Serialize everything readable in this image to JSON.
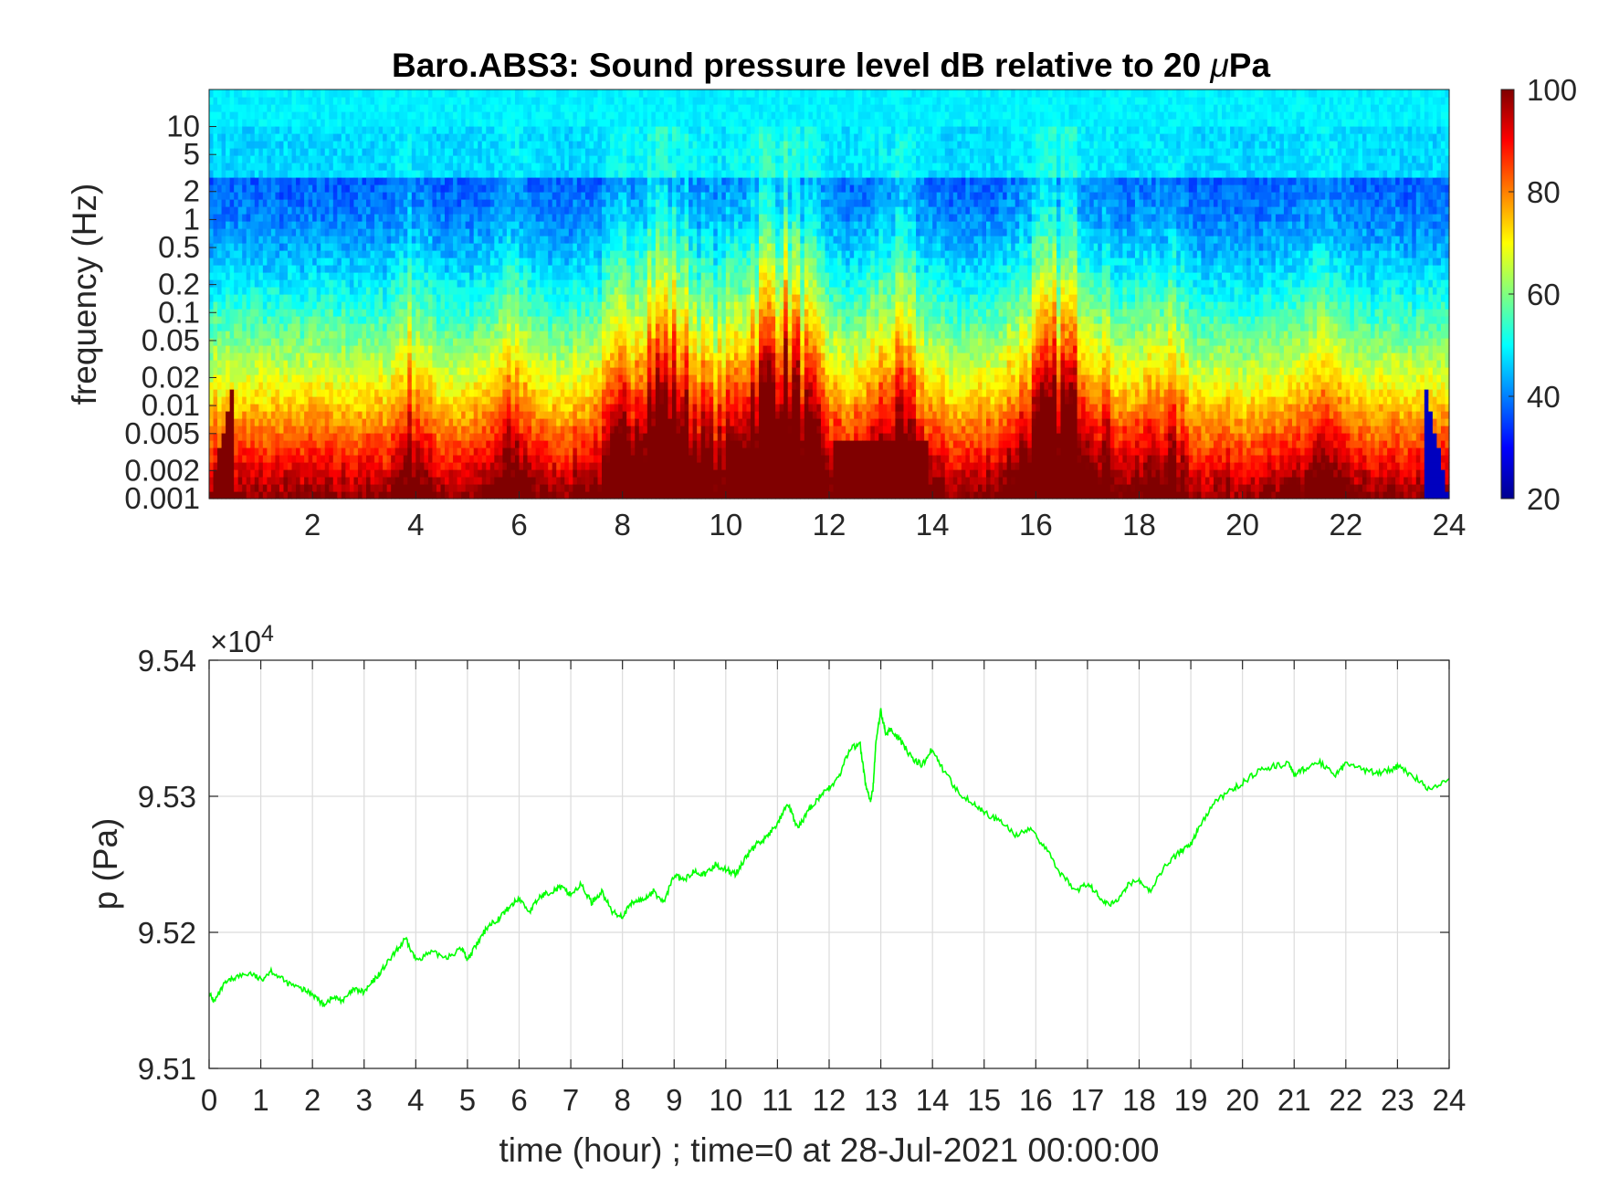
{
  "colors": {
    "line": "#00ff00",
    "axis": "#262626",
    "grid": "#dcdcdc",
    "colormap": "jet"
  },
  "chart_data": [
    {
      "type": "heatmap",
      "title": "Baro.ABS3: Sound pressure level dB relative to 20 μPa",
      "title_main": "Baro.ABS3: Sound pressure level dB relative to 20 ",
      "title_mu": "μ",
      "title_end": "Pa",
      "xlabel": "",
      "ylabel": "frequency (Hz)",
      "xlim": [
        0,
        24
      ],
      "y_scale": "log",
      "ylim": [
        0.001,
        25
      ],
      "x_ticks": [
        "2",
        "4",
        "6",
        "8",
        "10",
        "12",
        "14",
        "16",
        "18",
        "20",
        "22",
        "24"
      ],
      "y_ticks": [
        "0.001",
        "0.002",
        "0.005",
        "0.01",
        "0.02",
        "0.05",
        "0.1",
        "0.2",
        "0.5",
        "1",
        "2",
        "5",
        "10"
      ],
      "colorbar": {
        "label": "",
        "range": [
          20,
          100
        ],
        "ticks": [
          "20",
          "40",
          "60",
          "80",
          "100"
        ]
      },
      "high_energy_periods_hour": [
        [
          7.5,
          9.7
        ],
        [
          10.2,
          12.0
        ],
        [
          15.7,
          17.8
        ]
      ],
      "max_level_region": {
        "hours": [
          12.0,
          14.0
        ],
        "freq_hz": [
          0.001,
          0.004
        ]
      }
    },
    {
      "type": "line",
      "title": "",
      "xlabel": "time (hour) ; time=0 at 28-Jul-2021 00:00:00",
      "ylabel": "p (Pa)",
      "y_multiplier": "×10",
      "y_multiplier_exp": "4",
      "xlim": [
        0,
        24
      ],
      "ylim": [
        9.51,
        9.54
      ],
      "grid": true,
      "x_ticks": [
        "0",
        "1",
        "2",
        "3",
        "4",
        "5",
        "6",
        "7",
        "8",
        "9",
        "10",
        "11",
        "12",
        "13",
        "14",
        "15",
        "16",
        "17",
        "18",
        "19",
        "20",
        "21",
        "22",
        "23",
        "24"
      ],
      "y_ticks": [
        "9.51",
        "9.52",
        "9.53",
        "9.54"
      ],
      "series": [
        {
          "x": [
            0,
            0.1,
            0.3,
            0.5,
            0.8,
            1.0,
            1.2,
            1.5,
            1.8,
            2.0,
            2.2,
            2.4,
            2.6,
            2.8,
            3.0,
            3.2,
            3.4,
            3.6,
            3.8,
            4.0,
            4.3,
            4.6,
            4.9,
            5.0,
            5.2,
            5.4,
            5.6,
            5.8,
            6.0,
            6.2,
            6.4,
            6.6,
            6.8,
            7.0,
            7.2,
            7.4,
            7.6,
            7.8,
            8.0,
            8.2,
            8.4,
            8.6,
            8.8,
            9.0,
            9.2,
            9.4,
            9.6,
            9.8,
            10.0,
            10.2,
            10.4,
            10.6,
            10.8,
            11.0,
            11.2,
            11.4,
            11.6,
            11.8,
            12.0,
            12.2,
            12.4,
            12.6,
            12.7,
            12.8,
            12.85,
            12.9,
            13.0,
            13.1,
            13.2,
            13.4,
            13.6,
            13.8,
            14.0,
            14.2,
            14.5,
            14.8,
            15.0,
            15.3,
            15.6,
            15.9,
            16.2,
            16.5,
            16.8,
            17.0,
            17.2,
            17.4,
            17.6,
            17.8,
            18.0,
            18.2,
            18.5,
            18.8,
            19.0,
            19.2,
            19.5,
            19.8,
            20.0,
            20.3,
            20.6,
            20.9,
            21.0,
            21.2,
            21.5,
            21.8,
            22.0,
            22.3,
            22.6,
            22.9,
            23.0,
            23.3,
            23.6,
            24.0
          ],
          "y": [
            9.5155,
            9.5149,
            9.5162,
            9.5167,
            9.517,
            9.5165,
            9.5172,
            9.5163,
            9.5158,
            9.5155,
            9.5147,
            9.5152,
            9.515,
            9.5158,
            9.5156,
            9.5165,
            9.5175,
            9.5185,
            9.5195,
            9.518,
            9.5185,
            9.5182,
            9.5188,
            9.518,
            9.5192,
            9.5205,
            9.521,
            9.5218,
            9.5225,
            9.5215,
            9.5226,
            9.523,
            9.5233,
            9.5228,
            9.5235,
            9.5222,
            9.523,
            9.5215,
            9.5212,
            9.5222,
            9.5224,
            9.523,
            9.5222,
            9.5242,
            9.5238,
            9.5246,
            9.5242,
            9.525,
            9.5246,
            9.5243,
            9.5256,
            9.5265,
            9.527,
            9.528,
            9.5294,
            9.5276,
            9.529,
            9.5299,
            9.5306,
            9.5315,
            9.5335,
            9.5338,
            9.531,
            9.5296,
            9.5305,
            9.5338,
            9.5363,
            9.5345,
            9.535,
            9.534,
            9.5328,
            9.5323,
            9.5335,
            9.532,
            9.5303,
            9.5295,
            9.5288,
            9.5282,
            9.5272,
            9.5275,
            9.5262,
            9.5242,
            9.523,
            9.5236,
            9.5228,
            9.522,
            9.5225,
            9.5236,
            9.5238,
            9.523,
            9.5248,
            9.526,
            9.5265,
            9.528,
            9.5297,
            9.5305,
            9.531,
            9.5318,
            9.5322,
            9.5324,
            9.5316,
            9.532,
            9.5325,
            9.5316,
            9.5324,
            9.532,
            9.5317,
            9.532,
            9.5322,
            9.5315,
            9.5305,
            9.5313
          ]
        }
      ]
    }
  ]
}
